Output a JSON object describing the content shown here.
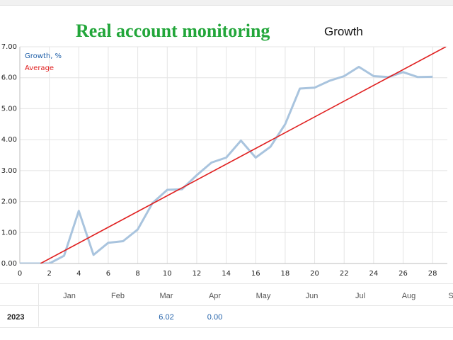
{
  "banner": "Real account monitoring",
  "chart_data": {
    "type": "line",
    "title": "Growth",
    "xlim": [
      0,
      29
    ],
    "ylim": [
      0,
      7
    ],
    "x_ticks": [
      0,
      2,
      4,
      6,
      8,
      10,
      12,
      14,
      16,
      18,
      20,
      22,
      24,
      26,
      28
    ],
    "y_ticks": [
      "0.00",
      "1.00",
      "2.00",
      "3.00",
      "4.00",
      "5.00",
      "6.00",
      "7.00"
    ],
    "grid": true,
    "legend_position": "top-left",
    "series": [
      {
        "name": "Growth, %",
        "color": "#a9c4de",
        "x": [
          0,
          1,
          2,
          3,
          4,
          5,
          6,
          7,
          8,
          9,
          10,
          11,
          12,
          13,
          14,
          15,
          16,
          17,
          18,
          19,
          20,
          21,
          22,
          23,
          24,
          25,
          26,
          27,
          28
        ],
        "y": [
          0.0,
          0.0,
          0.0,
          0.25,
          1.7,
          0.28,
          0.67,
          0.72,
          1.1,
          1.95,
          2.38,
          2.4,
          2.85,
          3.26,
          3.42,
          3.97,
          3.42,
          3.77,
          4.5,
          5.65,
          5.68,
          5.9,
          6.05,
          6.35,
          6.05,
          6.02,
          6.18,
          6.02,
          6.03
        ]
      },
      {
        "name": "Average",
        "color": "#e02020",
        "x": [
          1.4,
          28.9
        ],
        "y": [
          0.0,
          7.0
        ]
      }
    ]
  },
  "table": {
    "months": [
      "Jan",
      "Feb",
      "Mar",
      "Apr",
      "May",
      "Jun",
      "Jul",
      "Aug",
      "S"
    ],
    "rows": [
      {
        "year": "2023",
        "values": [
          "",
          "",
          "6.02",
          "0.00",
          "",
          "",
          "",
          "",
          ""
        ]
      }
    ]
  }
}
